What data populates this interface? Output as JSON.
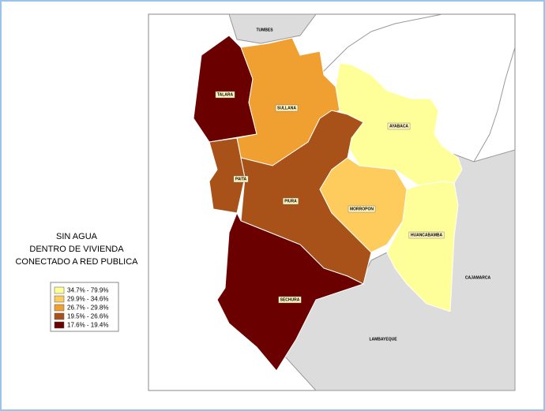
{
  "title_lines": [
    "SIN AGUA",
    "DENTRO DE VIVIENDA",
    "CONECTADO A RED PUBLICA"
  ],
  "legend": [
    {
      "label": "34.7% - 79.9%",
      "color": "#ffff99"
    },
    {
      "label": "29.9% - 34.6%",
      "color": "#fdcc5c"
    },
    {
      "label": "26.7% - 29.8%",
      "color": "#f0a030"
    },
    {
      "label": "19.5% - 26.6%",
      "color": "#a8521a"
    },
    {
      "label": "17.6% - 19.4%",
      "color": "#6b0000"
    }
  ],
  "regions": [
    {
      "label": "TALARA",
      "color": "#6b0000"
    },
    {
      "label": "SULLANA",
      "color": "#f0a030"
    },
    {
      "label": "AYABACA",
      "color": "#ffff99"
    },
    {
      "label": "PAITA",
      "color": "#a8521a"
    },
    {
      "label": "PIURA",
      "color": "#a8521a"
    },
    {
      "label": "MORROPON",
      "color": "#fdcc5c"
    },
    {
      "label": "HUANCABAMBA",
      "color": "#ffff99"
    },
    {
      "label": "SECHURA",
      "color": "#6b0000"
    }
  ],
  "neighbors": [
    "TUMBES",
    "CAJAMARCA",
    "LAMBAYEQUE"
  ]
}
